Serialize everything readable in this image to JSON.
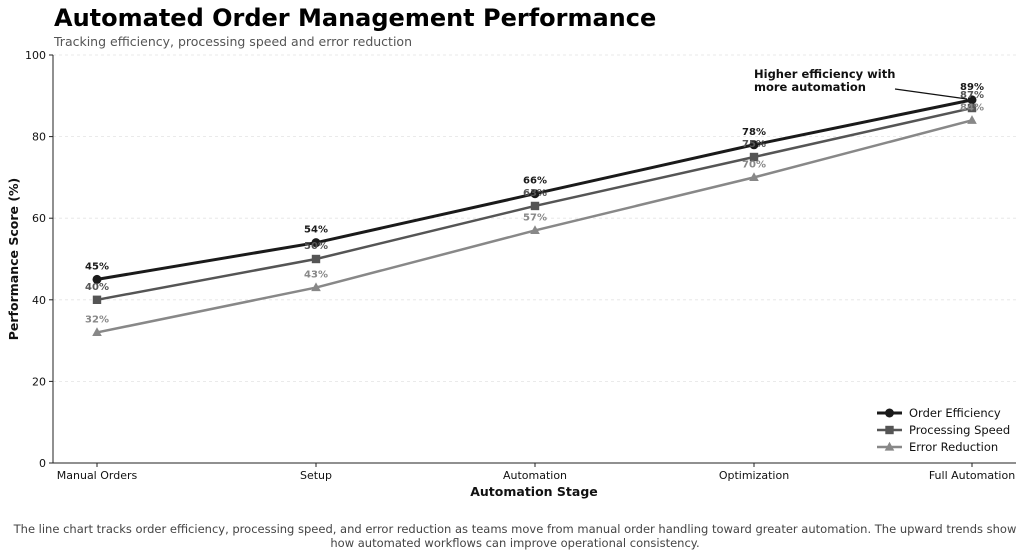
{
  "chart_data": {
    "type": "line",
    "title": "Automated Order Management Performance",
    "subtitle": "Tracking efficiency, processing speed and error reduction",
    "xlabel": "Automation Stage",
    "ylabel": "Performance Score (%)",
    "categories": [
      "Manual Orders",
      "Setup",
      "Automation",
      "Optimization",
      "Full Automation"
    ],
    "ylim": [
      0,
      100
    ],
    "yticks": [
      0,
      20,
      40,
      60,
      80,
      100
    ],
    "grid": true,
    "legend_position": "bottom-right",
    "series": [
      {
        "name": "Order Efficiency",
        "values": [
          45,
          54,
          66,
          78,
          89
        ],
        "color": "#1a1a1a",
        "marker": "circle",
        "labels": [
          "45%",
          "54%",
          "66%",
          "78%",
          "89%"
        ]
      },
      {
        "name": "Processing Speed",
        "values": [
          40,
          50,
          63,
          75,
          87
        ],
        "color": "#555555",
        "marker": "square",
        "labels": [
          "40%",
          "50%",
          "63%",
          "75%",
          "87%"
        ]
      },
      {
        "name": "Error Reduction",
        "values": [
          32,
          43,
          57,
          70,
          84
        ],
        "color": "#888888",
        "marker": "triangle",
        "labels": [
          "32%",
          "43%",
          "57%",
          "70%",
          "84%"
        ]
      }
    ],
    "annotation": {
      "lines": [
        "Higher efficiency with",
        "more automation"
      ],
      "category": "Full Automation",
      "value": 89
    }
  },
  "caption": "The line chart tracks order efficiency, processing speed, and error reduction as teams move from manual order handling toward greater automation. The upward trends show how automated workflows can improve operational consistency."
}
